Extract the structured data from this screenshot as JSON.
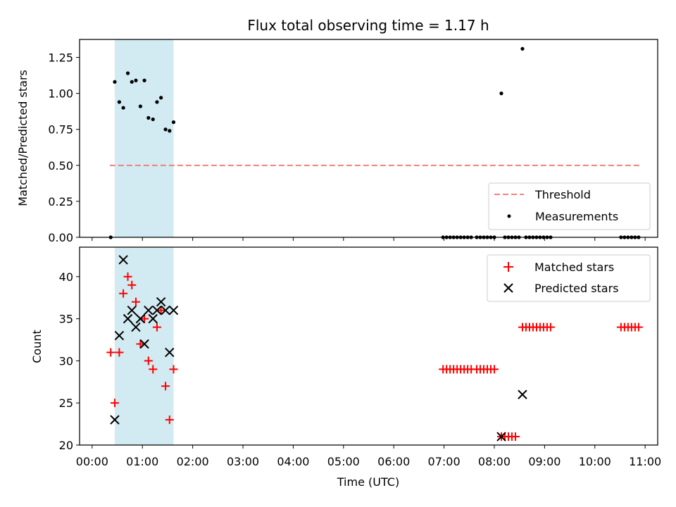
{
  "chart_data": [
    {
      "type": "scatter",
      "title": "Flux total observing time = 1.17 h",
      "xlabel": "",
      "ylabel": "Matched/Predicted stars",
      "xlim": [
        -0.25,
        11.25
      ],
      "ylim": [
        0,
        1.375
      ],
      "yticks": [
        0.0,
        0.25,
        0.5,
        0.75,
        1.0,
        1.25
      ],
      "ytick_labels": [
        "0.00",
        "0.25",
        "0.50",
        "0.75",
        "1.00",
        "1.25"
      ],
      "shaded_span": [
        0.45,
        1.62
      ],
      "shaded_color": "#add8e6",
      "threshold": {
        "name": "Threshold",
        "value": 0.5,
        "x_range": [
          0.35,
          10.9
        ],
        "color": "#f08080"
      },
      "legend": {
        "position": "lower-right",
        "entries": [
          "Threshold",
          "Measurements"
        ]
      },
      "series": [
        {
          "name": "Measurements",
          "color": "#000000",
          "marker": "dot",
          "x": [
            0.37,
            0.45,
            0.54,
            0.62,
            0.71,
            0.79,
            0.87,
            0.96,
            1.04,
            1.12,
            1.21,
            1.29,
            1.37,
            1.46,
            1.54,
            1.62,
            6.98,
            7.05,
            7.12,
            7.19,
            7.26,
            7.33,
            7.4,
            7.47,
            7.54,
            7.65,
            7.72,
            7.79,
            7.86,
            7.93,
            8.0,
            8.14,
            8.21,
            8.28,
            8.35,
            8.42,
            8.49,
            8.56,
            8.63,
            8.7,
            8.77,
            8.84,
            8.91,
            8.98,
            9.05,
            9.12,
            10.52,
            10.59,
            10.66,
            10.73,
            10.8,
            10.87
          ],
          "y": [
            0.0,
            1.08,
            0.94,
            0.9,
            1.14,
            1.08,
            1.09,
            0.91,
            1.09,
            0.83,
            0.82,
            0.94,
            0.97,
            0.75,
            0.74,
            0.8,
            0,
            0,
            0,
            0,
            0,
            0,
            0,
            0,
            0,
            0,
            0,
            0,
            0,
            0,
            0,
            1.0,
            0,
            0,
            0,
            0,
            0,
            1.31,
            0,
            0,
            0,
            0,
            0,
            0,
            0,
            0,
            0,
            0,
            0,
            0,
            0,
            0
          ]
        }
      ]
    },
    {
      "type": "scatter",
      "title": "",
      "xlabel": "Time (UTC)",
      "ylabel": "Count",
      "xlim": [
        -0.25,
        11.25
      ],
      "ylim": [
        20,
        43.5
      ],
      "xticks": [
        0,
        1,
        2,
        3,
        4,
        5,
        6,
        7,
        8,
        9,
        10,
        11
      ],
      "xtick_labels": [
        "00:00",
        "01:00",
        "02:00",
        "03:00",
        "04:00",
        "05:00",
        "06:00",
        "07:00",
        "08:00",
        "09:00",
        "10:00",
        "11:00"
      ],
      "yticks": [
        20,
        25,
        30,
        35,
        40
      ],
      "ytick_labels": [
        "20",
        "25",
        "30",
        "35",
        "40"
      ],
      "shaded_span": [
        0.45,
        1.62
      ],
      "shaded_color": "#add8e6",
      "legend": {
        "position": "upper-right",
        "entries": [
          "Matched stars",
          "Predicted stars"
        ]
      },
      "series": [
        {
          "name": "Matched stars",
          "color": "#ff0000",
          "marker": "plus",
          "x": [
            0.37,
            0.45,
            0.54,
            0.62,
            0.71,
            0.79,
            0.87,
            0.96,
            1.04,
            1.12,
            1.21,
            1.29,
            1.37,
            1.46,
            1.54,
            1.62,
            6.98,
            7.05,
            7.12,
            7.19,
            7.26,
            7.33,
            7.4,
            7.47,
            7.54,
            7.65,
            7.72,
            7.79,
            7.86,
            7.93,
            8.0,
            8.14,
            8.21,
            8.28,
            8.35,
            8.42,
            8.56,
            8.63,
            8.7,
            8.77,
            8.84,
            8.91,
            8.98,
            9.05,
            9.12,
            10.52,
            10.59,
            10.66,
            10.73,
            10.8,
            10.87
          ],
          "y": [
            31,
            25,
            31,
            38,
            40,
            39,
            37,
            32,
            35,
            30,
            29,
            34,
            36,
            27,
            23,
            29,
            29,
            29,
            29,
            29,
            29,
            29,
            29,
            29,
            29,
            29,
            29,
            29,
            29,
            29,
            29,
            21,
            21,
            21,
            21,
            21,
            34,
            34,
            34,
            34,
            34,
            34,
            34,
            34,
            34,
            34,
            34,
            34,
            34,
            34,
            34
          ]
        },
        {
          "name": "Predicted stars",
          "color": "#000000",
          "marker": "x",
          "x": [
            0.45,
            0.54,
            0.62,
            0.71,
            0.79,
            0.87,
            0.96,
            1.04,
            1.12,
            1.21,
            1.29,
            1.37,
            1.46,
            1.54,
            1.62,
            8.14,
            8.56
          ],
          "y": [
            23,
            33,
            42,
            35,
            36,
            34,
            35,
            32,
            36,
            35,
            36,
            37,
            36,
            31,
            36,
            21,
            26
          ]
        }
      ]
    }
  ]
}
